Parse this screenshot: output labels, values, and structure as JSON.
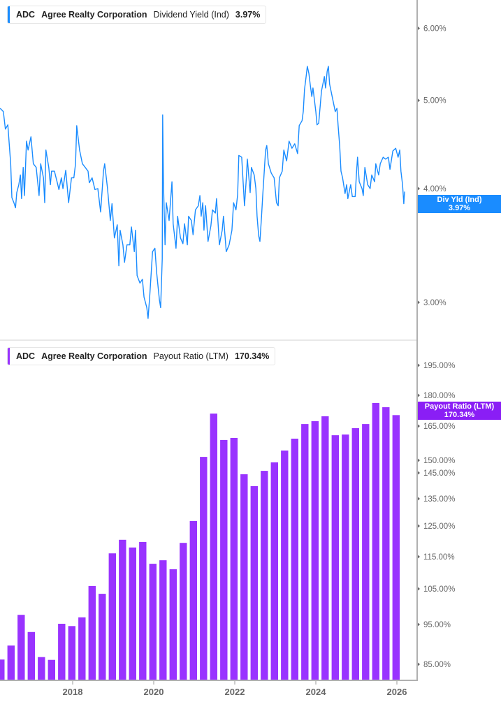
{
  "colors": {
    "yield_line": "#1a8cff",
    "payout_bar": "#9933ff",
    "payout_tag": "#8a1ef5",
    "axis": "#b0b0b0"
  },
  "top_legend": {
    "ticker": "ADC",
    "company": "Agree Realty Corporation",
    "metric": "Dividend Yield (Ind)",
    "value": "3.97%"
  },
  "top_tag": {
    "label": "Div Yld (Ind)",
    "value": "3.97%"
  },
  "bottom_legend": {
    "ticker": "ADC",
    "company": "Agree Realty Corporation",
    "metric": "Payout Ratio (LTM)",
    "value": "170.34%"
  },
  "bottom_tag": {
    "label": "Payout Ratio (LTM)",
    "value": "170.34%"
  },
  "chart_data": [
    {
      "type": "line",
      "series_label": "Dividend Yield (Ind)",
      "y_scale": "log",
      "y_ticks": [
        "6.00%",
        "5.00%",
        "4.00%",
        "3.00%"
      ],
      "y_tick_values": [
        6,
        5,
        4,
        3
      ],
      "ylim": [
        2.85,
        6.3
      ],
      "grid": false,
      "x": [
        2016.21,
        2016.29,
        2016.34,
        2016.4,
        2016.47,
        2016.5,
        2016.55,
        2016.59,
        2016.62,
        2016.67,
        2016.71,
        2016.74,
        2016.78,
        2016.81,
        2016.86,
        2016.9,
        2016.97,
        2017.03,
        2017.1,
        2017.17,
        2017.21,
        2017.28,
        2017.31,
        2017.34,
        2017.41,
        2017.45,
        2017.48,
        2017.55,
        2017.62,
        2017.66,
        2017.72,
        2017.76,
        2017.83,
        2017.9,
        2017.97,
        2018.03,
        2018.07,
        2018.1,
        2018.17,
        2018.24,
        2018.31,
        2018.38,
        2018.41,
        2018.48,
        2018.55,
        2018.62,
        2018.69,
        2018.76,
        2018.79,
        2018.86,
        2018.93,
        2018.97,
        2019.03,
        2019.1,
        2019.14,
        2019.17,
        2019.24,
        2019.28,
        2019.34,
        2019.41,
        2019.45,
        2019.52,
        2019.55,
        2019.59,
        2019.66,
        2019.72,
        2019.76,
        2019.83,
        2019.86,
        2019.9,
        2019.97,
        2020.03,
        2020.07,
        2020.14,
        2020.17,
        2020.21,
        2020.22,
        2020.24,
        2020.28,
        2020.31,
        2020.38,
        2020.45,
        2020.48,
        2020.55,
        2020.59,
        2020.66,
        2020.72,
        2020.76,
        2020.83,
        2020.86,
        2020.93,
        2020.97,
        2021.03,
        2021.1,
        2021.14,
        2021.17,
        2021.21,
        2021.24,
        2021.28,
        2021.34,
        2021.41,
        2021.45,
        2021.52,
        2021.55,
        2021.62,
        2021.69,
        2021.72,
        2021.79,
        2021.86,
        2021.93,
        2021.97,
        2022.03,
        2022.07,
        2022.1,
        2022.17,
        2022.24,
        2022.28,
        2022.31,
        2022.38,
        2022.41,
        2022.48,
        2022.52,
        2022.55,
        2022.59,
        2022.62,
        2022.66,
        2022.69,
        2022.76,
        2022.79,
        2022.83,
        2022.9,
        2022.97,
        2023.03,
        2023.07,
        2023.1,
        2023.17,
        2023.21,
        2023.28,
        2023.34,
        2023.41,
        2023.48,
        2023.55,
        2023.59,
        2023.66,
        2023.69,
        2023.72,
        2023.76,
        2023.79,
        2023.83,
        2023.86,
        2023.9,
        2023.93,
        2024.0,
        2024.03,
        2024.07,
        2024.14,
        2024.21,
        2024.24,
        2024.28,
        2024.31,
        2024.34,
        2024.41,
        2024.48,
        2024.52,
        2024.55,
        2024.59,
        2024.62,
        2024.66,
        2024.72,
        2024.76,
        2024.79,
        2024.86,
        2024.9,
        2024.97,
        2025.0,
        2025.03,
        2025.07,
        2025.14,
        2025.17,
        2025.21,
        2025.28,
        2025.34,
        2025.38,
        2025.45,
        2025.48,
        2025.55,
        2025.59,
        2025.66,
        2025.72,
        2025.79,
        2025.83,
        2025.9,
        2025.97,
        2026.03,
        2026.07,
        2026.1,
        2026.14,
        2026.17,
        2026.19
      ],
      "y": [
        4.9,
        4.86,
        4.65,
        4.7,
        4.26,
        3.91,
        3.86,
        3.81,
        3.96,
        4.04,
        4.14,
        3.9,
        4.22,
        3.93,
        4.51,
        4.41,
        4.56,
        4.26,
        4.22,
        3.93,
        4.26,
        4.11,
        3.86,
        4.41,
        4.22,
        4.04,
        4.18,
        4.18,
        4.06,
        3.99,
        4.11,
        4.0,
        4.19,
        3.86,
        4.11,
        4.11,
        4.26,
        4.69,
        4.41,
        4.26,
        4.22,
        4.18,
        4.06,
        4.11,
        3.99,
        4.0,
        3.77,
        4.18,
        4.26,
        4.0,
        3.69,
        3.85,
        3.53,
        3.65,
        3.29,
        3.6,
        3.47,
        3.32,
        3.47,
        3.47,
        3.63,
        3.41,
        3.6,
        3.21,
        3.15,
        3.18,
        3.04,
        2.96,
        2.88,
        3.04,
        3.41,
        3.44,
        3.24,
        3.02,
        2.96,
        3.35,
        4.82,
        4.07,
        3.47,
        3.86,
        3.69,
        4.07,
        3.66,
        3.44,
        3.73,
        3.53,
        3.48,
        3.66,
        3.47,
        3.73,
        3.69,
        3.56,
        3.79,
        3.83,
        3.93,
        3.73,
        3.86,
        3.6,
        3.83,
        3.5,
        3.64,
        3.79,
        3.76,
        3.9,
        3.47,
        3.6,
        3.73,
        3.41,
        3.47,
        3.6,
        3.86,
        3.79,
        3.94,
        4.35,
        4.33,
        3.83,
        4.07,
        4.31,
        3.96,
        4.22,
        4.14,
        4.0,
        3.73,
        3.55,
        3.5,
        3.73,
        3.93,
        4.41,
        4.46,
        4.26,
        4.16,
        4.11,
        3.86,
        3.83,
        4.11,
        4.18,
        4.41,
        4.29,
        4.51,
        4.43,
        4.48,
        4.37,
        4.69,
        4.75,
        4.86,
        5.14,
        5.31,
        5.45,
        5.35,
        5.21,
        5.05,
        5.16,
        4.86,
        4.7,
        4.72,
        5.12,
        5.31,
        5.16,
        5.38,
        5.45,
        5.21,
        5.03,
        4.86,
        4.9,
        4.69,
        4.45,
        4.18,
        4.11,
        3.95,
        4.04,
        3.9,
        4.04,
        3.92,
        3.92,
        4.14,
        4.33,
        4.07,
        4.0,
        3.93,
        4.22,
        4.04,
        4.0,
        4.14,
        4.07,
        4.26,
        4.14,
        4.26,
        4.33,
        4.31,
        4.33,
        4.2,
        4.4,
        4.43,
        4.33,
        4.41,
        4.18,
        4.04,
        3.85,
        3.97
      ]
    },
    {
      "type": "bar",
      "series_label": "Payout Ratio (LTM)",
      "y_ticks": [
        "195.00%",
        "180.00%",
        "165.00%",
        "150.00%",
        "145.00%",
        "135.00%",
        "125.00%",
        "115.00%",
        "105.00%",
        "95.00%",
        "85.00%"
      ],
      "y_tick_values": [
        195,
        180,
        165,
        150,
        145,
        135,
        125,
        115,
        105,
        95,
        85
      ],
      "x_ticks": [
        "2018",
        "2020",
        "2022",
        "2024",
        "2026"
      ],
      "grid": false,
      "categories": [
        "2016 Q1",
        "2016 Q2",
        "2016 Q3",
        "2016 Q4",
        "2017 Q1",
        "2017 Q2",
        "2017 Q3",
        "2017 Q4",
        "2018 Q1",
        "2018 Q2",
        "2018 Q3",
        "2018 Q4",
        "2019 Q1",
        "2019 Q2",
        "2019 Q3",
        "2019 Q4",
        "2020 Q1",
        "2020 Q2",
        "2020 Q3",
        "2020 Q4",
        "2021 Q1",
        "2021 Q2",
        "2021 Q3",
        "2021 Q4",
        "2022 Q1",
        "2022 Q2",
        "2022 Q3",
        "2022 Q4",
        "2023 Q1",
        "2023 Q2",
        "2023 Q3",
        "2023 Q4",
        "2024 Q1",
        "2024 Q2",
        "2024 Q3",
        "2024 Q4",
        "2025 Q1",
        "2025 Q2",
        "2025 Q3",
        "2025 Q4"
      ],
      "values": [
        86.2,
        89.7,
        97.7,
        93.1,
        86.8,
        86.1,
        95.2,
        94.6,
        97.0,
        105.9,
        103.6,
        116.1,
        120.5,
        118.0,
        119.8,
        112.8,
        113.9,
        111.1,
        119.5,
        126.8,
        151.5,
        171.1,
        158.9,
        159.8,
        144.5,
        139.9,
        145.8,
        149.2,
        154.3,
        159.5,
        166.0,
        167.4,
        169.8,
        161.0,
        161.3,
        164.1,
        166.0,
        176.3,
        174.2,
        170.34
      ]
    }
  ]
}
